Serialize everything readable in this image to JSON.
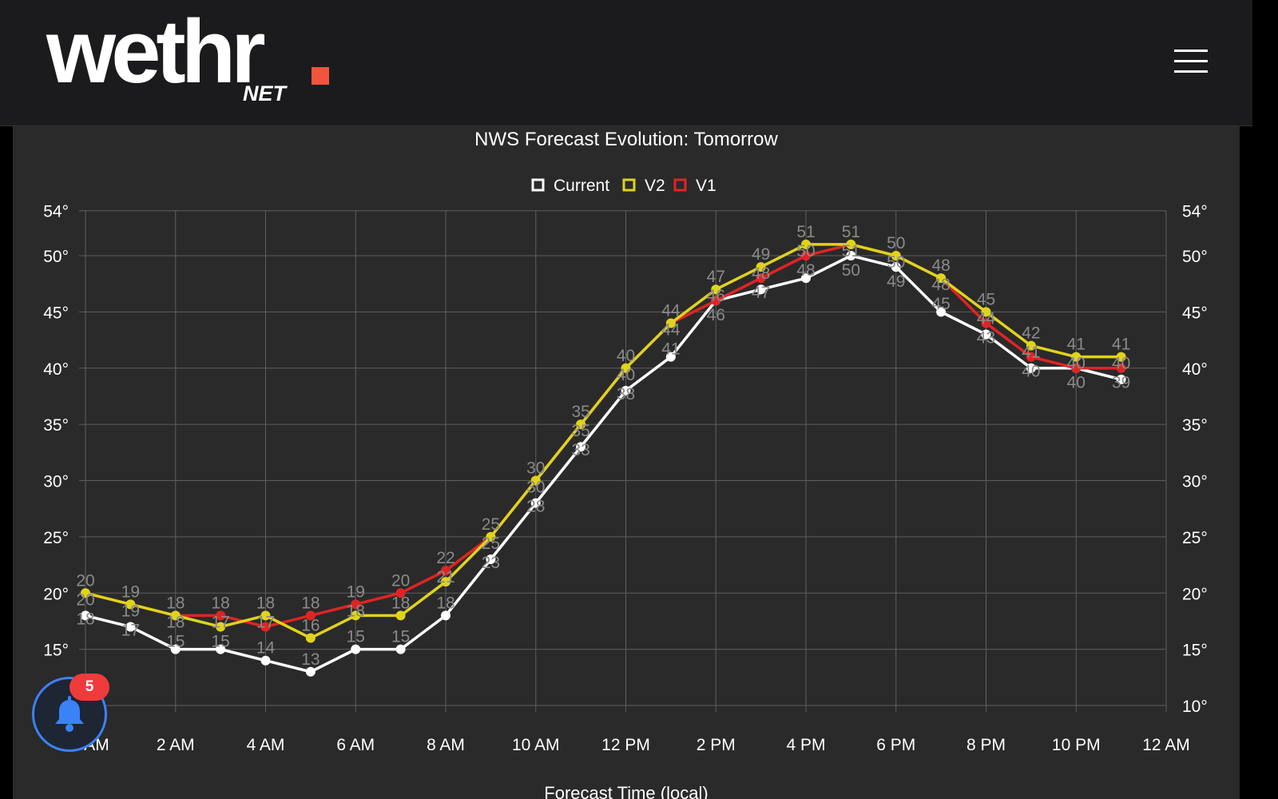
{
  "header": {
    "logo_text": "wethr",
    "logo_sub": "NET",
    "menu_icon": "hamburger-icon"
  },
  "notifications": {
    "count": "5",
    "icon": "bell-icon"
  },
  "chart_data": {
    "type": "line",
    "title": "NWS Forecast Evolution: Tomorrow",
    "xlabel": "Forecast Time (local)",
    "ylabel": "",
    "x_tick_labels": [
      "12 AM",
      "2 AM",
      "4 AM",
      "6 AM",
      "8 AM",
      "10 AM",
      "12 PM",
      "2 PM",
      "4 PM",
      "6 PM",
      "8 PM",
      "10 PM",
      "12 AM"
    ],
    "x_hours": [
      0,
      1,
      2,
      3,
      4,
      5,
      6,
      7,
      8,
      9,
      10,
      11,
      12,
      13,
      14,
      15,
      16,
      17,
      18,
      19,
      20,
      21,
      22,
      23
    ],
    "y_tick_labels": [
      "10°",
      "15°",
      "20°",
      "25°",
      "30°",
      "35°",
      "40°",
      "45°",
      "50°",
      "54°"
    ],
    "y_ticks": [
      10,
      15,
      20,
      25,
      30,
      35,
      40,
      45,
      50,
      54
    ],
    "ylim": [
      10,
      54
    ],
    "grid": true,
    "legend_position": "top",
    "series": [
      {
        "name": "Current",
        "color": "#ffffff",
        "values": [
          18,
          17,
          15,
          15,
          14,
          13,
          15,
          15,
          18,
          23,
          28,
          33,
          38,
          41,
          46,
          47,
          48,
          50,
          49,
          45,
          43,
          40,
          40,
          39
        ]
      },
      {
        "name": "V2",
        "color": "#e0d31c",
        "values": [
          20,
          19,
          18,
          17,
          18,
          16,
          18,
          18,
          21,
          25,
          30,
          35,
          40,
          44,
          47,
          49,
          51,
          51,
          50,
          48,
          45,
          42,
          41,
          41
        ]
      },
      {
        "name": "V1",
        "color": "#e02424",
        "values": [
          20,
          19,
          18,
          18,
          17,
          18,
          19,
          20,
          22,
          25,
          30,
          35,
          40,
          44,
          46,
          48,
          50,
          51,
          50,
          48,
          44,
          41,
          40,
          40
        ]
      }
    ]
  }
}
